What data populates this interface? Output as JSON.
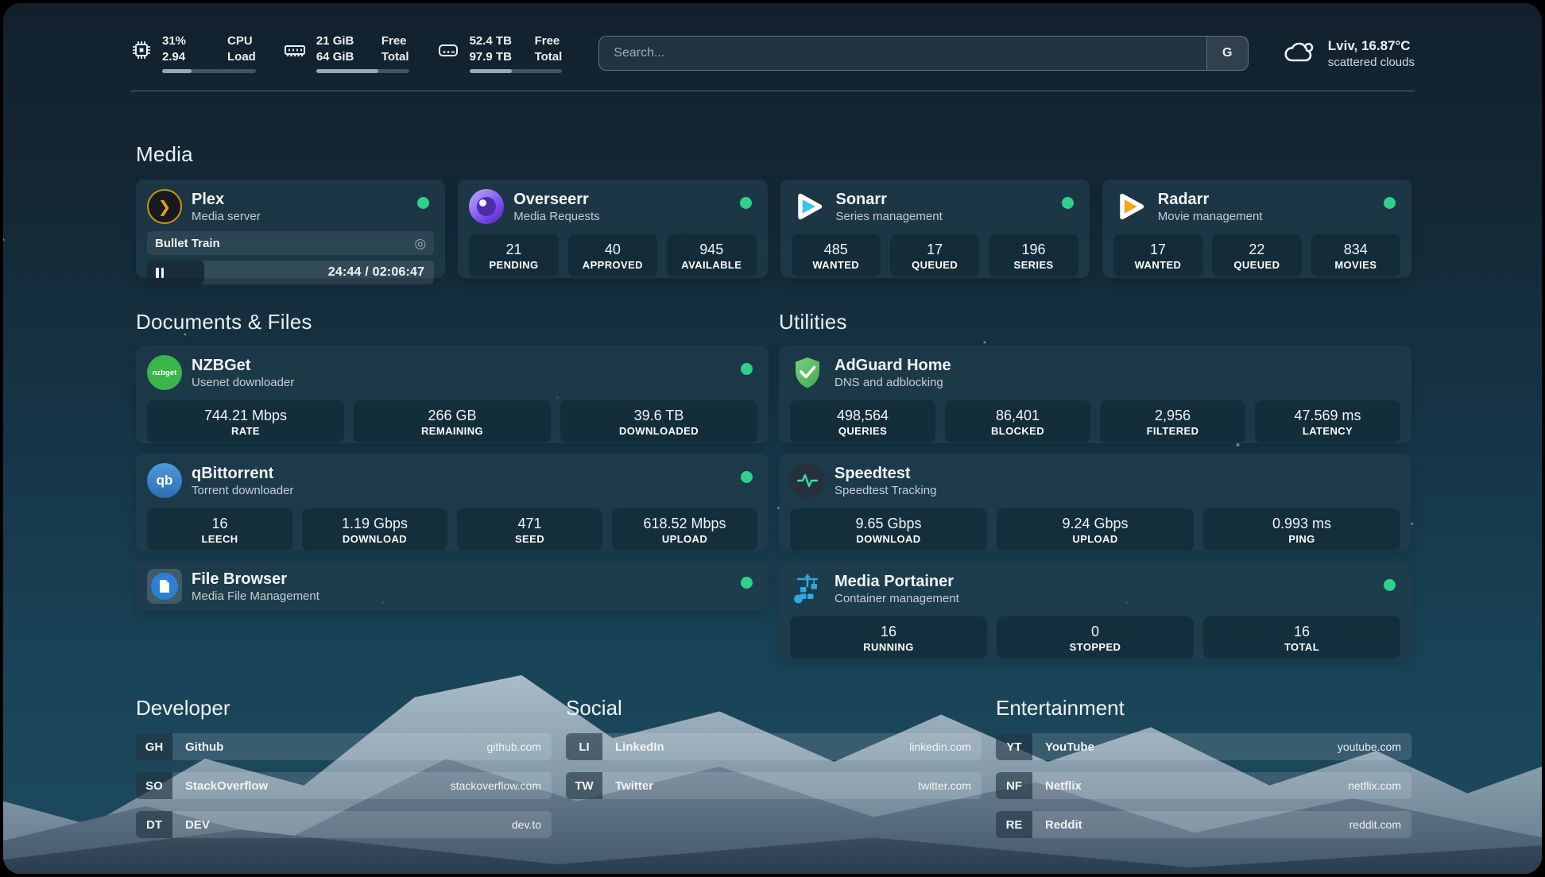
{
  "colors": {
    "status_up": "#2fd08c",
    "progress_fill": "#9aa8b4",
    "accent_plex": "#e5a00d"
  },
  "icons": {
    "search_provider_glyph": "G",
    "session_glyph": "◎"
  },
  "header": {
    "widgets": [
      {
        "icon": "cpu-icon",
        "value1": "31%",
        "value2": "2.94",
        "label1": "CPU",
        "label2": "Load",
        "progress": 31
      },
      {
        "icon": "memory-icon",
        "value1": "21 GiB",
        "value2": "64 GiB",
        "label1": "Free",
        "label2": "Total",
        "progress": 67
      },
      {
        "icon": "disk-icon",
        "value1": "52.4 TB",
        "value2": "97.9 TB",
        "label1": "Free",
        "label2": "Total",
        "progress": 46
      }
    ],
    "search": {
      "placeholder": "Search...",
      "provider_button": "G"
    },
    "weather": {
      "location": "Lviv, 16.87°C",
      "condition": "scattered clouds"
    }
  },
  "sections": {
    "media": {
      "title": "Media",
      "plex": {
        "title": "Plex",
        "subtitle": "Media server",
        "status": "up",
        "now_playing": "Bullet Train",
        "time": "24:44 / 02:06:47",
        "progress_pct": 20
      },
      "overseerr": {
        "title": "Overseerr",
        "subtitle": "Media Requests",
        "status": "up",
        "stats": [
          {
            "value": "21",
            "label": "PENDING"
          },
          {
            "value": "40",
            "label": "APPROVED"
          },
          {
            "value": "945",
            "label": "AVAILABLE"
          }
        ]
      },
      "sonarr": {
        "title": "Sonarr",
        "subtitle": "Series management",
        "status": "up",
        "stats": [
          {
            "value": "485",
            "label": "WANTED"
          },
          {
            "value": "17",
            "label": "QUEUED"
          },
          {
            "value": "196",
            "label": "SERIES"
          }
        ]
      },
      "radarr": {
        "title": "Radarr",
        "subtitle": "Movie management",
        "status": "up",
        "stats": [
          {
            "value": "17",
            "label": "WANTED"
          },
          {
            "value": "22",
            "label": "QUEUED"
          },
          {
            "value": "834",
            "label": "MOVIES"
          }
        ]
      }
    },
    "documents": {
      "title": "Documents & Files",
      "nzbget": {
        "title": "NZBGet",
        "subtitle": "Usenet downloader",
        "status": "up",
        "stats": [
          {
            "value": "744.21 Mbps",
            "label": "RATE"
          },
          {
            "value": "266 GB",
            "label": "REMAINING"
          },
          {
            "value": "39.6 TB",
            "label": "DOWNLOADED"
          }
        ]
      },
      "qbittorrent": {
        "title": "qBittorrent",
        "subtitle": "Torrent downloader",
        "status": "up",
        "stats": [
          {
            "value": "16",
            "label": "LEECH"
          },
          {
            "value": "1.19 Gbps",
            "label": "DOWNLOAD"
          },
          {
            "value": "471",
            "label": "SEED"
          },
          {
            "value": "618.52 Mbps",
            "label": "UPLOAD"
          }
        ]
      },
      "filebrowser": {
        "title": "File Browser",
        "subtitle": "Media File Management",
        "status": "up"
      }
    },
    "utilities": {
      "title": "Utilities",
      "adguard": {
        "title": "AdGuard Home",
        "subtitle": "DNS and adblocking",
        "stats": [
          {
            "value": "498,564",
            "label": "QUERIES"
          },
          {
            "value": "86,401",
            "label": "BLOCKED"
          },
          {
            "value": "2,956",
            "label": "FILTERED"
          },
          {
            "value": "47.569 ms",
            "label": "LATENCY"
          }
        ]
      },
      "speedtest": {
        "title": "Speedtest",
        "subtitle": "Speedtest Tracking",
        "stats": [
          {
            "value": "9.65 Gbps",
            "label": "DOWNLOAD"
          },
          {
            "value": "9.24 Gbps",
            "label": "UPLOAD"
          },
          {
            "value": "0.993 ms",
            "label": "PING"
          }
        ]
      },
      "portainer": {
        "title": "Media Portainer",
        "subtitle": "Container management",
        "status": "up",
        "stats": [
          {
            "value": "16",
            "label": "RUNNING"
          },
          {
            "value": "0",
            "label": "STOPPED"
          },
          {
            "value": "16",
            "label": "TOTAL"
          }
        ]
      }
    }
  },
  "bookmarks": {
    "developer": {
      "title": "Developer",
      "items": [
        {
          "abbr": "GH",
          "name": "Github",
          "url": "github.com"
        },
        {
          "abbr": "SO",
          "name": "StackOverflow",
          "url": "stackoverflow.com"
        },
        {
          "abbr": "DT",
          "name": "DEV",
          "url": "dev.to"
        }
      ]
    },
    "social": {
      "title": "Social",
      "items": [
        {
          "abbr": "LI",
          "name": "LinkedIn",
          "url": "linkedin.com"
        },
        {
          "abbr": "TW",
          "name": "Twitter",
          "url": "twitter.com"
        }
      ]
    },
    "entertainment": {
      "title": "Entertainment",
      "items": [
        {
          "abbr": "YT",
          "name": "YouTube",
          "url": "youtube.com"
        },
        {
          "abbr": "NF",
          "name": "Netflix",
          "url": "netflix.com"
        },
        {
          "abbr": "RE",
          "name": "Reddit",
          "url": "reddit.com"
        }
      ]
    }
  }
}
